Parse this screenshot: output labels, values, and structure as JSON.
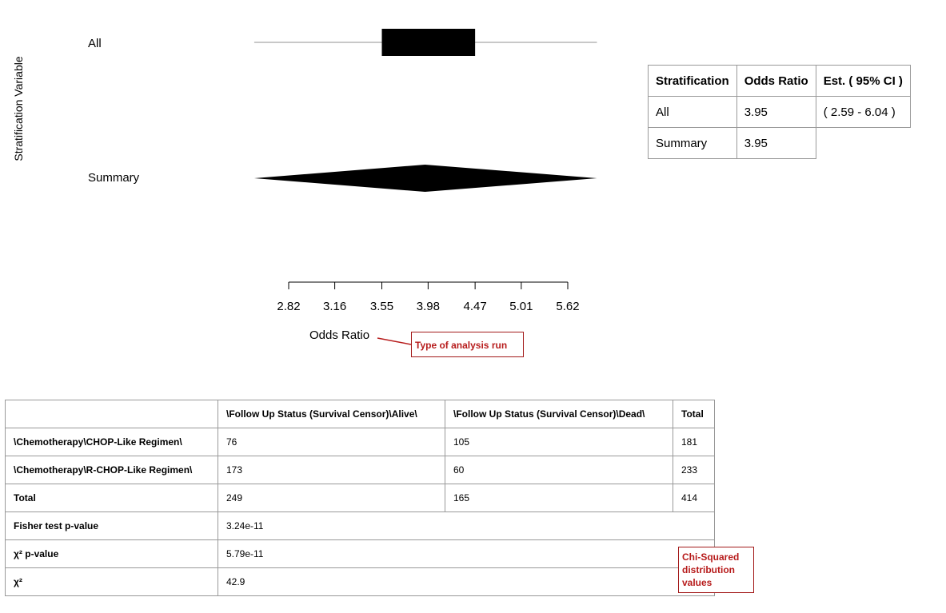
{
  "chart_data": {
    "type": "forest",
    "ylabel": "Stratification Variable",
    "xlabel": "Odds Ratio",
    "x_scale": "log",
    "xticks": [
      2.82,
      3.16,
      3.55,
      3.98,
      4.47,
      5.01,
      5.62
    ],
    "rows": [
      {
        "label": "All",
        "estimate": 3.95,
        "ci": [
          2.59,
          6.04
        ],
        "box_range": [
          3.55,
          4.47
        ]
      },
      {
        "label": "Summary",
        "estimate": 3.95,
        "ci": [
          2.59,
          6.04
        ],
        "shape": "diamond"
      }
    ],
    "annotation": "Type of analysis run"
  },
  "or_table": {
    "headers": [
      "Stratification",
      "Odds Ratio",
      "Est. ( 95% CI )"
    ],
    "rows": [
      [
        "All",
        "3.95",
        "( 2.59 - 6.04 )"
      ],
      [
        "Summary",
        "3.95",
        ""
      ]
    ]
  },
  "contingency": {
    "headers": [
      "",
      "\\Follow Up Status (Survival Censor)\\Alive\\",
      "\\Follow Up Status (Survival Censor)\\Dead\\",
      "Total"
    ],
    "rows": [
      [
        "\\Chemotherapy\\CHOP-Like Regimen\\",
        "76",
        "105",
        "181"
      ],
      [
        "\\Chemotherapy\\R-CHOP-Like Regimen\\",
        "173",
        "60",
        "233"
      ],
      [
        "Total",
        "249",
        "165",
        "414"
      ]
    ],
    "stats": [
      {
        "label": "Fisher test p-value",
        "value": "3.24e-11"
      },
      {
        "label": "χ² p-value",
        "value": "5.79e-11"
      },
      {
        "label": "χ²",
        "value": "42.9"
      }
    ],
    "annotation": "Chi-Squared distribution values"
  }
}
